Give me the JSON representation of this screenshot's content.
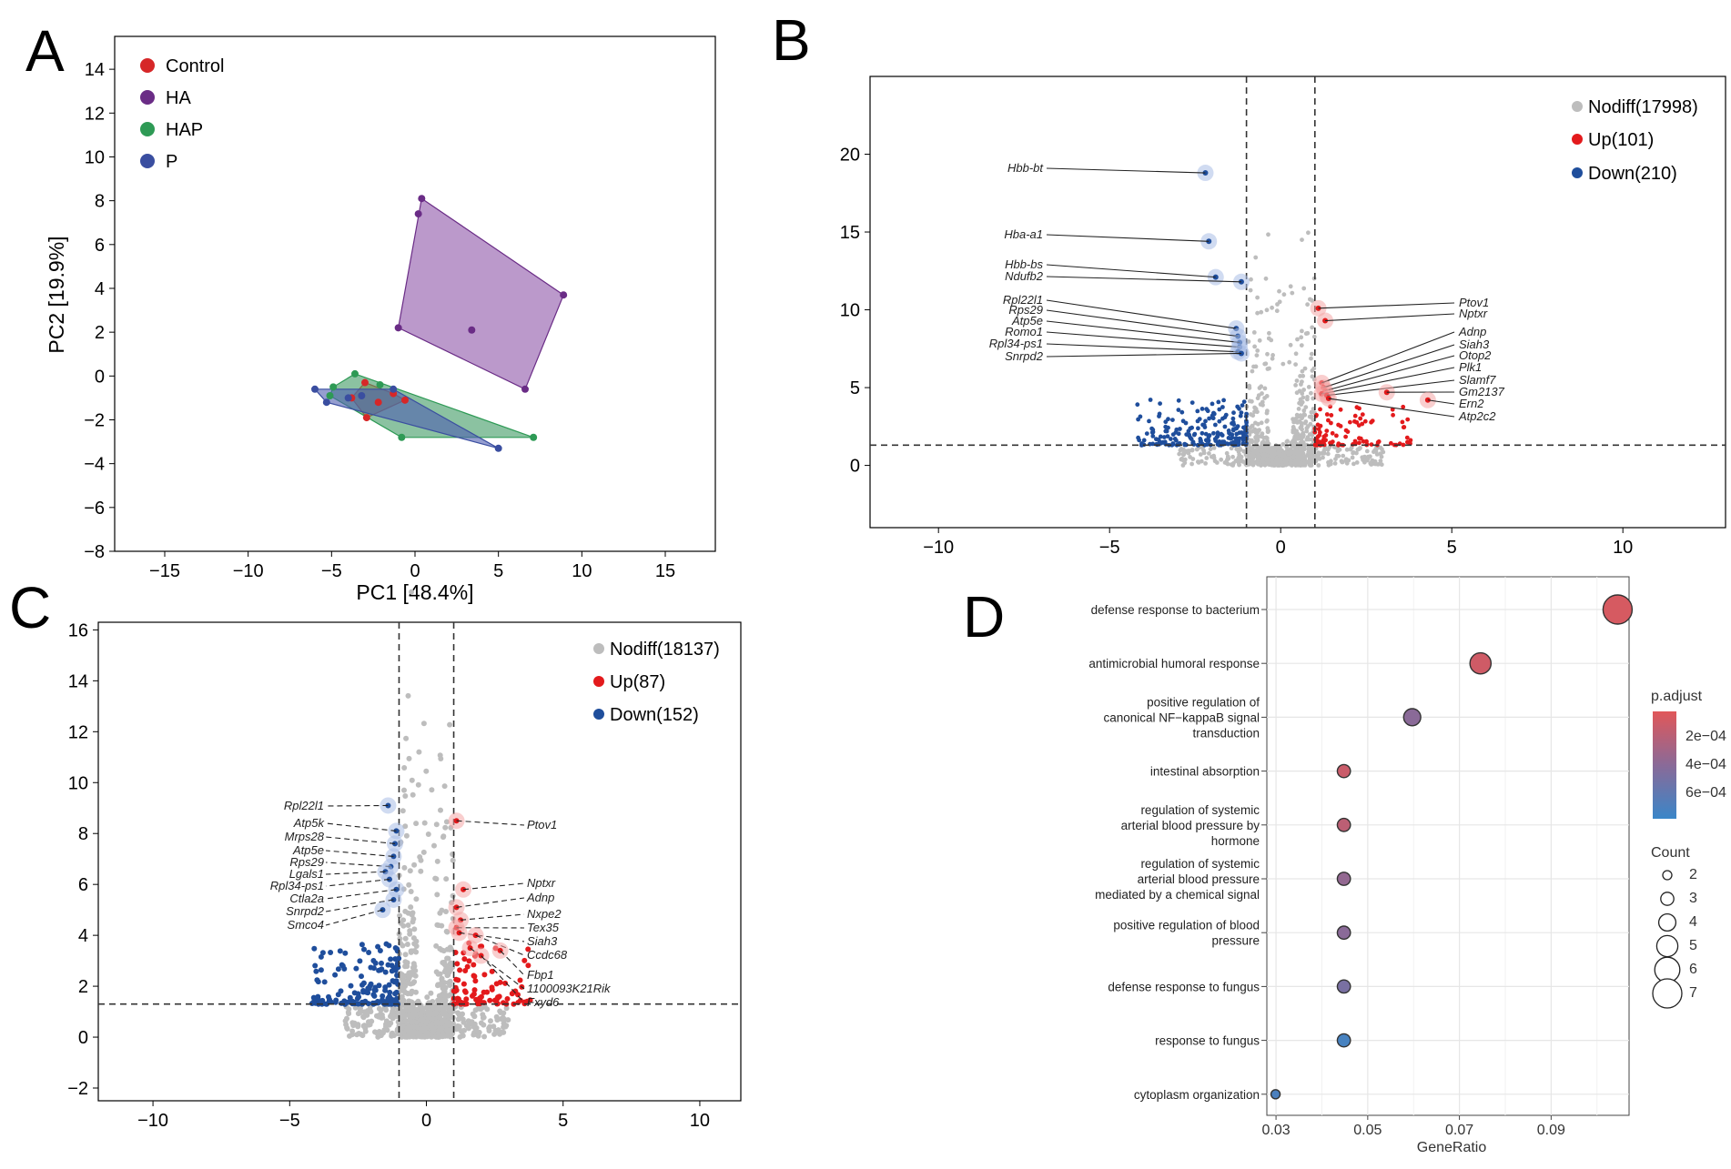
{
  "panels": [
    "A",
    "B",
    "C",
    "D"
  ],
  "chart_data": [
    {
      "type": "scatter",
      "subtype": "pca_convex_hull",
      "panel": "A",
      "xlabel": "PC1 [48.4%]",
      "ylabel": "PC2 [19.9%]",
      "xlim": [
        -18,
        18
      ],
      "ylim": [
        -8,
        15.5
      ],
      "xticks": [
        -15,
        -10,
        -5,
        0,
        5,
        10,
        15
      ],
      "yticks": [
        14,
        12,
        10,
        8,
        6,
        4,
        2,
        0,
        -2,
        -4,
        -6,
        -8
      ],
      "legend_position": "top-left",
      "series": [
        {
          "name": "Control",
          "color": "#d62728",
          "fill": "#c8763a",
          "points": [
            [
              -3.0,
              -0.3
            ],
            [
              -1.3,
              -0.8
            ],
            [
              -0.6,
              -1.1
            ],
            [
              -3.8,
              -1.0
            ],
            [
              -2.9,
              -1.9
            ],
            [
              -2.2,
              -1.2
            ]
          ],
          "hull": [
            [
              -3.0,
              -0.3
            ],
            [
              -1.3,
              -0.8
            ],
            [
              -0.6,
              -1.1
            ],
            [
              -2.9,
              -1.9
            ],
            [
              -3.8,
              -1.0
            ]
          ]
        },
        {
          "name": "HA",
          "color": "#6a2c86",
          "fill": "#8e55a8",
          "points": [
            [
              0.4,
              8.1
            ],
            [
              8.9,
              3.7
            ],
            [
              6.6,
              -0.6
            ],
            [
              -1.0,
              2.2
            ],
            [
              3.4,
              2.1
            ],
            [
              0.2,
              7.4
            ]
          ],
          "hull": [
            [
              0.4,
              8.1
            ],
            [
              8.9,
              3.7
            ],
            [
              6.6,
              -0.6
            ],
            [
              -1.0,
              2.2
            ]
          ]
        },
        {
          "name": "HAP",
          "color": "#2e9a55",
          "fill": "#3d9a63",
          "points": [
            [
              -4.9,
              -0.5
            ],
            [
              -3.6,
              0.1
            ],
            [
              7.1,
              -2.8
            ],
            [
              -0.8,
              -2.8
            ],
            [
              -5.1,
              -0.9
            ],
            [
              -2.1,
              -0.4
            ]
          ],
          "hull": [
            [
              -3.6,
              0.1
            ],
            [
              7.1,
              -2.8
            ],
            [
              -0.8,
              -2.8
            ],
            [
              -5.1,
              -0.9
            ],
            [
              -4.9,
              -0.5
            ]
          ]
        },
        {
          "name": "P",
          "color": "#3a4ea0",
          "fill": "#4f5db0",
          "points": [
            [
              -6.0,
              -0.6
            ],
            [
              -5.3,
              -1.2
            ],
            [
              5.0,
              -3.3
            ],
            [
              -1.3,
              -0.6
            ],
            [
              -3.2,
              -0.9
            ],
            [
              -4.0,
              -1.0
            ]
          ],
          "hull": [
            [
              -6.0,
              -0.6
            ],
            [
              -1.3,
              -0.6
            ],
            [
              5.0,
              -3.3
            ],
            [
              -5.3,
              -1.2
            ]
          ]
        }
      ]
    },
    {
      "type": "scatter",
      "subtype": "volcano",
      "panel": "B",
      "xlim": [
        -12,
        13
      ],
      "ylim": [
        -4,
        25
      ],
      "xticks": [
        -10,
        -5,
        0,
        5,
        10
      ],
      "yticks": [
        20,
        15,
        10,
        5,
        0
      ],
      "thresholds": {
        "x": [
          -1,
          1
        ],
        "y": 1.3
      },
      "legend_position": "top-right",
      "series": [
        {
          "name": "Nodiff(17998)",
          "color": "#bdbdbd"
        },
        {
          "name": "Up(101)",
          "color": "#e31a1c"
        },
        {
          "name": "Down(210)",
          "color": "#1f4e9c"
        }
      ],
      "labeled_genes": [
        {
          "gene": "Hbb-bt",
          "x": -2.2,
          "y": 18.8
        },
        {
          "gene": "Hba-a1",
          "x": -2.1,
          "y": 14.4
        },
        {
          "gene": "Hbb-bs",
          "x": -1.9,
          "y": 12.1
        },
        {
          "gene": "Ndufb2",
          "x": -1.15,
          "y": 11.8
        },
        {
          "gene": "Rpl22l1",
          "x": -1.3,
          "y": 8.8
        },
        {
          "gene": "Rps29",
          "x": -1.25,
          "y": 8.3
        },
        {
          "gene": "Atp5e",
          "x": -1.2,
          "y": 7.9
        },
        {
          "gene": "Romo1",
          "x": -1.2,
          "y": 7.6
        },
        {
          "gene": "Rpl34-ps1",
          "x": -1.25,
          "y": 7.3
        },
        {
          "gene": "Snrpd2",
          "x": -1.15,
          "y": 7.2
        },
        {
          "gene": "Ptov1",
          "x": 1.1,
          "y": 10.1
        },
        {
          "gene": "Nptxr",
          "x": 1.3,
          "y": 9.3
        },
        {
          "gene": "Adnp",
          "x": 1.2,
          "y": 5.3
        },
        {
          "gene": "Siah3",
          "x": 1.25,
          "y": 5.0
        },
        {
          "gene": "Otop2",
          "x": 1.3,
          "y": 4.8
        },
        {
          "gene": "Plk1",
          "x": 1.2,
          "y": 4.6
        },
        {
          "gene": "Slamf7",
          "x": 1.35,
          "y": 4.5
        },
        {
          "gene": "Gm2137",
          "x": 3.1,
          "y": 4.7
        },
        {
          "gene": "Ern2",
          "x": 4.3,
          "y": 4.2
        },
        {
          "gene": "Atp2c2",
          "x": 1.4,
          "y": 4.3
        }
      ]
    },
    {
      "type": "scatter",
      "subtype": "volcano",
      "panel": "C",
      "xlim": [
        -12,
        11.5
      ],
      "ylim": [
        -2.5,
        16.3
      ],
      "xticks": [
        -10,
        -5,
        0,
        5,
        10
      ],
      "yticks": [
        16,
        14,
        12,
        10,
        8,
        6,
        4,
        2,
        0,
        -2
      ],
      "thresholds": {
        "x": [
          -1,
          1
        ],
        "y": 1.3
      },
      "legend_position": "top-right",
      "series": [
        {
          "name": "Nodiff(18137)",
          "color": "#bdbdbd"
        },
        {
          "name": "Up(87)",
          "color": "#e31a1c"
        },
        {
          "name": "Down(152)",
          "color": "#1f4e9c"
        }
      ],
      "labeled_genes": [
        {
          "gene": "Rpl22l1",
          "x": -1.4,
          "y": 9.1
        },
        {
          "gene": "Atp5k",
          "x": -1.1,
          "y": 8.1
        },
        {
          "gene": "Mrps28",
          "x": -1.15,
          "y": 7.6
        },
        {
          "gene": "Atp5e",
          "x": -1.2,
          "y": 7.1
        },
        {
          "gene": "Rps29",
          "x": -1.3,
          "y": 6.7
        },
        {
          "gene": "Lgals1",
          "x": -1.5,
          "y": 6.5
        },
        {
          "gene": "Rpl34-ps1",
          "x": -1.35,
          "y": 6.2
        },
        {
          "gene": "Ctla2a",
          "x": -1.1,
          "y": 5.8
        },
        {
          "gene": "Snrpd2",
          "x": -1.2,
          "y": 5.4
        },
        {
          "gene": "Smco4",
          "x": -1.6,
          "y": 5.0
        },
        {
          "gene": "Ptov1",
          "x": 1.1,
          "y": 8.5
        },
        {
          "gene": "Nptxr",
          "x": 1.35,
          "y": 5.8
        },
        {
          "gene": "Adnp",
          "x": 1.1,
          "y": 5.1
        },
        {
          "gene": "Nxpe2",
          "x": 1.25,
          "y": 4.6
        },
        {
          "gene": "Tex35",
          "x": 1.1,
          "y": 4.3
        },
        {
          "gene": "Siah3",
          "x": 1.2,
          "y": 4.1
        },
        {
          "gene": "Ccdc68",
          "x": 1.8,
          "y": 4.0
        },
        {
          "gene": "Fbp1",
          "x": 2.7,
          "y": 3.4
        },
        {
          "gene": "1100093K21Rik",
          "x": 1.6,
          "y": 3.5
        },
        {
          "gene": "Fxyd6",
          "x": 2.0,
          "y": 3.2
        }
      ]
    },
    {
      "type": "scatter",
      "subtype": "go_dotplot",
      "panel": "D",
      "xlabel": "GeneRatio",
      "xlim": [
        0.028,
        0.107
      ],
      "xticks": [
        0.03,
        0.05,
        0.07,
        0.09
      ],
      "xtick_labels": [
        "0.03",
        "0.05",
        "0.07",
        "0.09"
      ],
      "terms": [
        "defense response to bacterium",
        "antimicrobial humoral response",
        "positive regulation of canonical NF−kappaB signal transduction",
        "intestinal absorption",
        "regulation of systemic arterial blood pressure by hormone",
        "regulation of systemic arterial blood pressure mediated by a chemical signal",
        "positive regulation of blood pressure",
        "defense response to fungus",
        "response to fungus",
        "cytoplasm organization"
      ],
      "term_display_lines": [
        [
          "defense response to bacterium"
        ],
        [
          "antimicrobial humoral response"
        ],
        [
          "positive regulation of",
          "canonical NF−kappaB signal",
          "transduction"
        ],
        [
          "intestinal absorption"
        ],
        [
          "regulation of systemic",
          "arterial blood pressure by",
          "hormone"
        ],
        [
          "regulation of systemic",
          "arterial blood pressure",
          "mediated by a chemical signal"
        ],
        [
          "positive regulation of blood",
          "pressure"
        ],
        [
          "defense response to fungus"
        ],
        [
          "response to fungus"
        ],
        [
          "cytoplasm organization"
        ]
      ],
      "gene_ratio": [
        0.1045,
        0.0746,
        0.0597,
        0.0448,
        0.0448,
        0.0448,
        0.0448,
        0.0448,
        0.0448,
        0.0299
      ],
      "count": [
        7,
        5,
        4,
        3,
        3,
        3,
        3,
        3,
        3,
        2
      ],
      "p_adjust": [
        7e-05,
        0.0001,
        0.0004,
        0.00012,
        0.00018,
        0.00036,
        0.0004,
        0.00048,
        0.00072,
        0.0007
      ],
      "color_legend": {
        "title": "p.adjust",
        "ticks": [
          0.0002,
          0.0004,
          0.0006
        ],
        "tick_labels": [
          "2e−04",
          "4e−04",
          "6e−04"
        ],
        "range": [
          2e-05,
          0.00078
        ],
        "low_color": "#e15759",
        "high_color": "#3a86c8"
      },
      "size_legend": {
        "title": "Count",
        "values": [
          2,
          3,
          4,
          5,
          6,
          7
        ]
      }
    }
  ]
}
